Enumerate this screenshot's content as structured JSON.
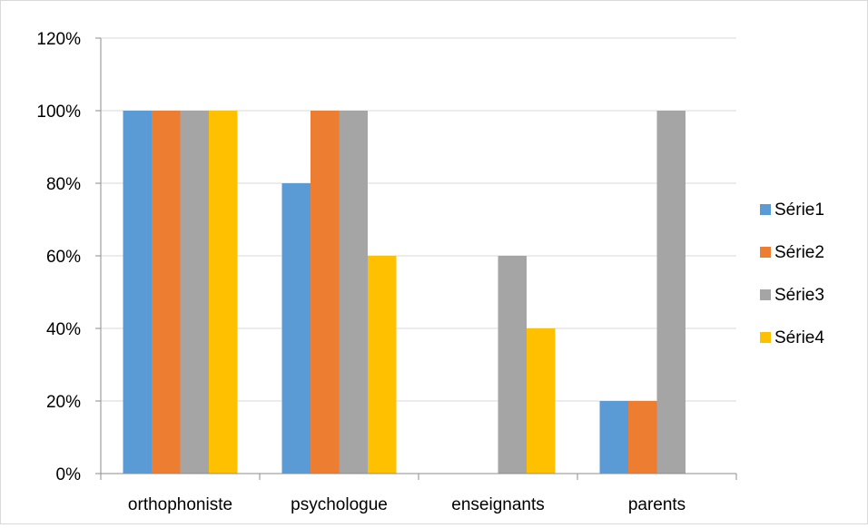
{
  "chart_data": {
    "type": "bar",
    "categories": [
      "orthophoniste",
      "psychologue",
      "enseignants",
      "parents"
    ],
    "series": [
      {
        "name": "Série1",
        "color": "#5B9BD5",
        "values": [
          100,
          80,
          0,
          20
        ]
      },
      {
        "name": "Série2",
        "color": "#ED7D31",
        "values": [
          100,
          100,
          0,
          20
        ]
      },
      {
        "name": "Série3",
        "color": "#A5A5A5",
        "values": [
          100,
          100,
          60,
          100
        ]
      },
      {
        "name": "Série4",
        "color": "#FFC000",
        "values": [
          100,
          60,
          40,
          0
        ]
      }
    ],
    "ylim": [
      0,
      120
    ],
    "yticks": [
      0,
      20,
      40,
      60,
      80,
      100,
      120
    ],
    "y_tick_format": "percent",
    "grid": true,
    "legend_position": "right",
    "title": "",
    "xlabel": "",
    "ylabel": ""
  }
}
